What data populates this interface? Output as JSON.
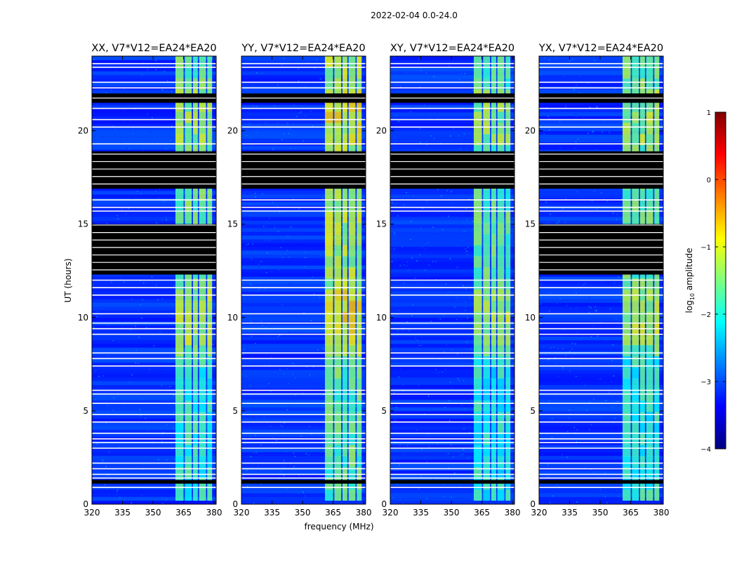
{
  "figure": {
    "suptitle": "2022-02-04 0.0-24.0"
  },
  "colorbar": {
    "label": "log10 amplitude",
    "label_base": "log",
    "label_sub": "10",
    "label_rest": " amplitude",
    "range": [
      -4,
      1
    ],
    "ticks": [
      1,
      0,
      -1,
      -2,
      -3,
      -4
    ],
    "tick_labels": [
      "1",
      "0",
      "−1",
      "−2",
      "−3",
      "−4"
    ],
    "colormap": "jet",
    "colors": [
      "#00007f",
      "#0000ff",
      "#007fff",
      "#00ffff",
      "#7fff7f",
      "#ffff00",
      "#ff7f00",
      "#ff0000",
      "#7f0000"
    ]
  },
  "chart_data": [
    {
      "type": "heatmap",
      "title": "XX, V7*V12=EA24*EA20",
      "xlabel": "",
      "ylabel": "UT (hours)",
      "xlim": [
        320,
        381
      ],
      "ylim": [
        0,
        24
      ],
      "xticks": [
        320,
        335,
        350,
        365,
        380
      ],
      "xtick_labels": [
        "320",
        "335",
        "350",
        "365",
        "380"
      ],
      "yticks": [
        0,
        5,
        10,
        15,
        20
      ],
      "ytick_labels": [
        "0",
        "5",
        "10",
        "15",
        "20"
      ],
      "flagged_hours": [
        [
          12.3,
          15.0
        ],
        [
          16.9,
          18.9
        ],
        [
          21.5,
          22.0
        ],
        [
          1.1,
          1.3
        ]
      ],
      "band_level": -1.3
    },
    {
      "type": "heatmap",
      "title": "YY, V7*V12=EA24*EA20",
      "xlabel": "frequency (MHz)",
      "ylabel": "",
      "xlim": [
        320,
        381
      ],
      "ylim": [
        0,
        24
      ],
      "xticks": [
        320,
        335,
        350,
        365,
        380
      ],
      "xtick_labels": [
        "320",
        "335",
        "350",
        "365",
        "380"
      ],
      "yticks": [
        0,
        5,
        10,
        15,
        20
      ],
      "ytick_labels": [
        "0",
        "5",
        "10",
        "15",
        "20"
      ],
      "flagged_hours": [
        [
          16.9,
          18.9
        ],
        [
          21.5,
          22.0
        ],
        [
          1.1,
          1.3
        ]
      ],
      "band_level": -1.0
    },
    {
      "type": "heatmap",
      "title": "XY, V7*V12=EA24*EA20",
      "xlabel": "",
      "ylabel": "",
      "xlim": [
        320,
        381
      ],
      "ylim": [
        0,
        24
      ],
      "xticks": [
        320,
        335,
        350,
        365,
        380
      ],
      "xtick_labels": [
        "320",
        "335",
        "350",
        "365",
        "380"
      ],
      "yticks": [
        0,
        5,
        10,
        15,
        20
      ],
      "ytick_labels": [
        "0",
        "5",
        "10",
        "15",
        "20"
      ],
      "flagged_hours": [
        [
          16.9,
          18.9
        ],
        [
          21.5,
          22.0
        ],
        [
          1.1,
          1.3
        ]
      ],
      "band_level": -1.4
    },
    {
      "type": "heatmap",
      "title": "YX, V7*V12=EA24*EA20",
      "xlabel": "",
      "ylabel": "",
      "xlim": [
        320,
        381
      ],
      "ylim": [
        0,
        24
      ],
      "xticks": [
        320,
        335,
        350,
        365,
        380
      ],
      "xtick_labels": [
        "320",
        "335",
        "350",
        "365",
        "380"
      ],
      "yticks": [
        0,
        5,
        10,
        15,
        20
      ],
      "ytick_labels": [
        "0",
        "5",
        "10",
        "15",
        "20"
      ],
      "flagged_hours": [
        [
          12.3,
          15.0
        ],
        [
          16.9,
          18.9
        ],
        [
          21.5,
          22.0
        ],
        [
          1.1,
          1.3
        ]
      ],
      "band_level": -1.3
    }
  ]
}
